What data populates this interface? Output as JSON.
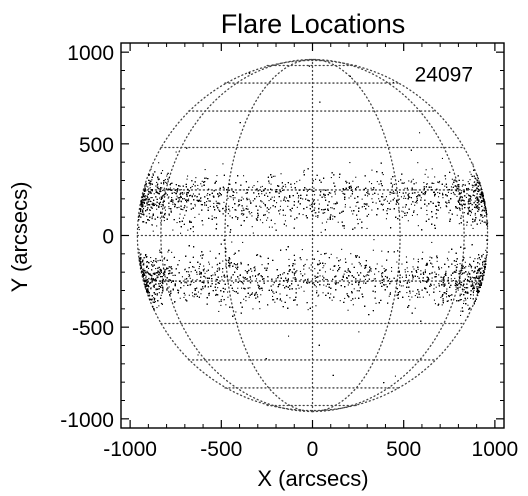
{
  "chart_data": {
    "type": "scatter",
    "title": "Flare Locations",
    "xlabel": "X (arcsecs)",
    "ylabel": "Y (arcsecs)",
    "xlim": [
      -1050,
      1050
    ],
    "ylim": [
      -1050,
      1050
    ],
    "xticks": [
      -1000,
      -500,
      0,
      500,
      1000
    ],
    "yticks": [
      -1000,
      -500,
      0,
      500,
      1000
    ],
    "xtick_labels": [
      "-1000",
      "-500",
      "0",
      "500",
      "1000"
    ],
    "ytick_labels": [
      "-1000",
      "-500",
      "0",
      "500",
      "1000"
    ],
    "annotation": "24097",
    "solar_radius_arcsec": 960,
    "grid": "heliographic lat/lon dotted grid on solar disk",
    "meridian_longitudes_deg": [
      -90,
      -60,
      -30,
      0,
      30,
      60,
      90
    ],
    "parallel_latitudes_deg": [
      -75,
      -60,
      -45,
      -30,
      -15,
      0,
      15,
      30,
      45,
      60,
      75
    ],
    "activity_bands_y_arcsec": [
      {
        "center": 200,
        "halfwidth": 250
      },
      {
        "center": -230,
        "halfwidth": 250
      }
    ],
    "point_count_drawn": 9000,
    "marker_color": "#000000"
  }
}
